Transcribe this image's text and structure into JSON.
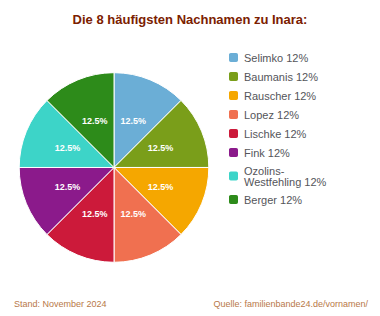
{
  "chart_data": {
    "type": "pie",
    "title": "Die 8 häufigsten Nachnamen zu Inara:",
    "categories": [
      "Selimko 12%",
      "Baumanis 12%",
      "Rauscher 12%",
      "Lopez 12%",
      "Lischke 12%",
      "Fink 12%",
      "Ozolins-\nWestfehling 12%",
      "Berger 12%"
    ],
    "values": [
      12.5,
      12.5,
      12.5,
      12.5,
      12.5,
      12.5,
      12.5,
      12.5
    ],
    "value_labels": [
      "12.5%",
      "12.5%",
      "12.5%",
      "12.5%",
      "12.5%",
      "12.5%",
      "12.5%",
      "12.5%"
    ],
    "data_labels": true,
    "colors": [
      "#6baed6",
      "#7a9e1a",
      "#f5a700",
      "#f07050",
      "#cc1a3a",
      "#8b1a8b",
      "#3dd4c8",
      "#2d8b1a"
    ],
    "legend": "right",
    "annotations": [
      "Stand: November 2024",
      "Quelle: familienbande24.de/vornamen/"
    ]
  }
}
